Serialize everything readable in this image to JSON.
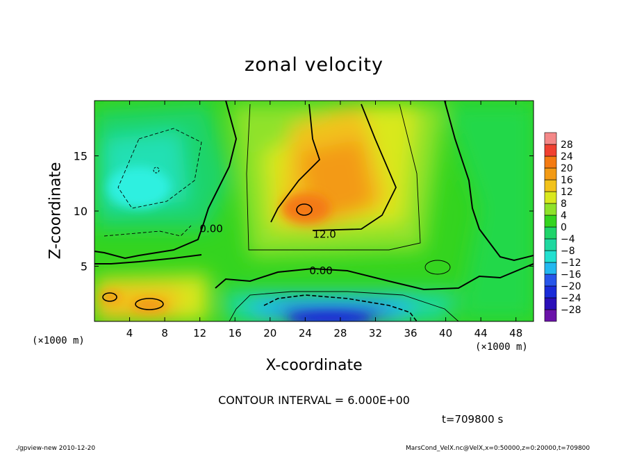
{
  "chart_data": {
    "type": "heatmap",
    "title": "zonal velocity",
    "xlabel": "X-coordinate",
    "ylabel": "Z-coordinate",
    "x_unit_left": "(×1000 m)",
    "x_unit_right": "(×1000 m)",
    "xlim": [
      0,
      50
    ],
    "ylim": [
      0,
      20
    ],
    "x_ticks": [
      4,
      8,
      12,
      16,
      20,
      24,
      28,
      32,
      36,
      40,
      44,
      48
    ],
    "y_ticks": [
      5,
      10,
      15
    ],
    "colorbar_levels": [
      -28,
      -24,
      -20,
      -16,
      -12,
      -8,
      -4,
      0,
      4,
      8,
      12,
      16,
      20,
      24,
      28
    ],
    "colorbar_labels": [
      "28",
      "24",
      "20",
      "16",
      "12",
      "8",
      "4",
      "0",
      "−4",
      "−8",
      "−12",
      "−16",
      "−20",
      "−24",
      "−28"
    ],
    "contour_labels": [
      {
        "text": "0.00",
        "x": 13.3,
        "y": 8.4
      },
      {
        "text": "12.0",
        "x": 26.2,
        "y": 7.9
      },
      {
        "text": "0.00",
        "x": 25.8,
        "y": 4.6
      }
    ],
    "features": [
      {
        "name": "positive jet core",
        "x": 24,
        "y": 10,
        "value": 20
      },
      {
        "name": "negative low-level core",
        "x": 28,
        "y": 0.5,
        "value": -26
      },
      {
        "name": "negative upper-left region",
        "x": 5,
        "y": 12.5,
        "value": -10
      }
    ],
    "contour_interval": "CONTOUR INTERVAL = 6.000E+00",
    "time": "t=709800 s",
    "footer_left": "./gpview-new  2010-12-20",
    "footer_right": "MarsCond_VelX.nc@VelX,x=0:50000,z=0:20000,t=709800"
  }
}
